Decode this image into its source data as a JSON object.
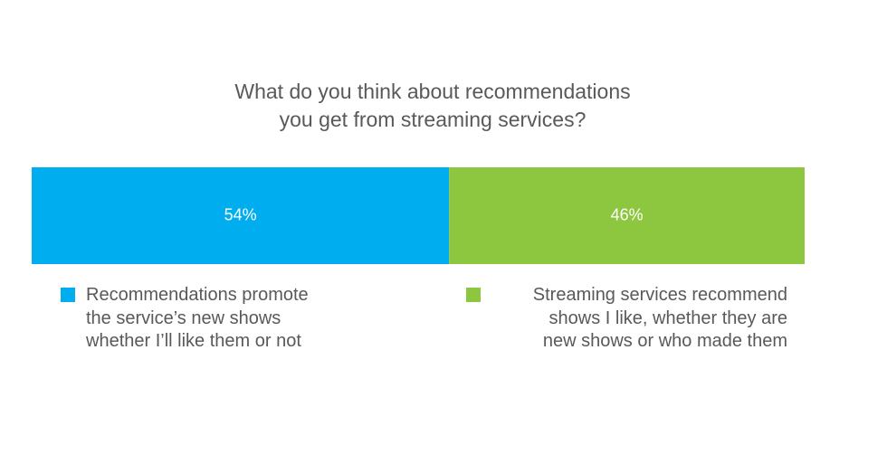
{
  "chart_data": {
    "type": "stacked-bar",
    "title": "What do you think about recommendations you get from streaming services?",
    "series": [
      {
        "name": "Recommendations promote the service’s new shows whether I’ll like them or not",
        "color": "#00aeef",
        "values": [
          54
        ],
        "value_labels": [
          "54%"
        ]
      },
      {
        "name": "Streaming services recommend shows I like, whether they are new shows or who made them",
        "color": "#8dc63f",
        "values": [
          46
        ],
        "value_labels": [
          "46%"
        ]
      }
    ]
  }
}
